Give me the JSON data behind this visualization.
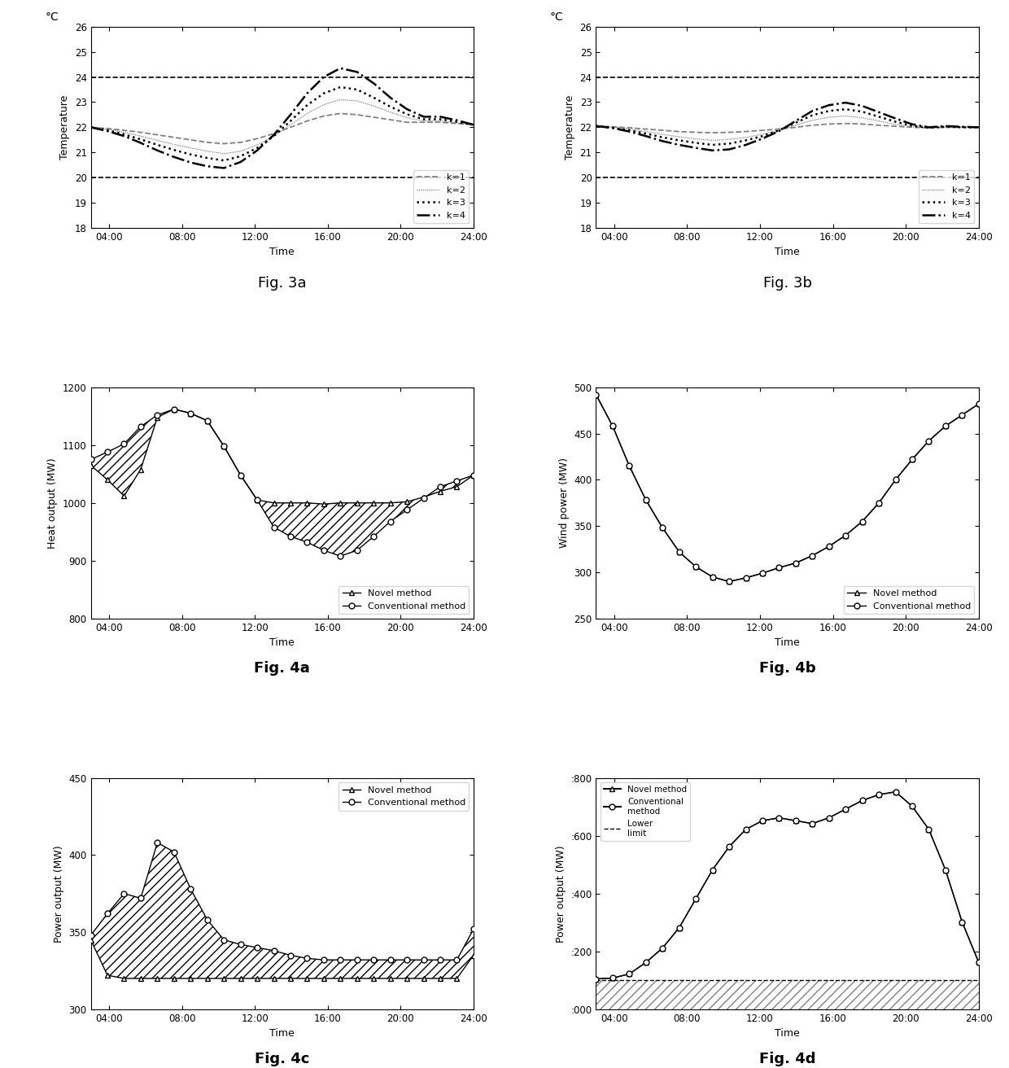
{
  "time_labels": [
    "04:00",
    "08:00",
    "12:00",
    "16:00",
    "20:00",
    "24:00"
  ],
  "time_ticks": [
    4,
    8,
    12,
    16,
    20,
    24
  ],
  "fig3a": {
    "ylim": [
      18,
      26
    ],
    "yticks": [
      18,
      19,
      20,
      21,
      22,
      23,
      24,
      25,
      26
    ],
    "k1": [
      22.0,
      21.95,
      21.88,
      21.8,
      21.7,
      21.6,
      21.5,
      21.4,
      21.35,
      21.4,
      21.55,
      21.75,
      22.0,
      22.25,
      22.45,
      22.55,
      22.5,
      22.4,
      22.3,
      22.2,
      22.2,
      22.2,
      22.15,
      22.1
    ],
    "k2": [
      22.0,
      21.92,
      21.8,
      21.65,
      21.48,
      21.32,
      21.18,
      21.05,
      20.95,
      21.05,
      21.3,
      21.65,
      22.1,
      22.55,
      22.9,
      23.1,
      23.05,
      22.85,
      22.6,
      22.38,
      22.25,
      22.25,
      22.18,
      22.1
    ],
    "k3": [
      22.0,
      21.88,
      21.72,
      21.52,
      21.3,
      21.1,
      20.92,
      20.78,
      20.68,
      20.85,
      21.18,
      21.65,
      22.25,
      22.88,
      23.35,
      23.6,
      23.5,
      23.18,
      22.82,
      22.52,
      22.32,
      22.32,
      22.22,
      22.1
    ],
    "k4": [
      22.0,
      21.85,
      21.65,
      21.38,
      21.08,
      20.82,
      20.6,
      20.45,
      20.38,
      20.62,
      21.08,
      21.7,
      22.5,
      23.35,
      24.0,
      24.35,
      24.2,
      23.75,
      23.18,
      22.72,
      22.42,
      22.42,
      22.28,
      22.1
    ]
  },
  "fig3b": {
    "ylim": [
      18,
      26
    ],
    "yticks": [
      18,
      19,
      20,
      21,
      22,
      23,
      24,
      25,
      26
    ],
    "k1": [
      22.05,
      22.02,
      21.98,
      21.93,
      21.88,
      21.83,
      21.8,
      21.78,
      21.8,
      21.83,
      21.88,
      21.93,
      22.0,
      22.08,
      22.13,
      22.15,
      22.13,
      22.08,
      22.04,
      22.0,
      21.98,
      22.0,
      22.0,
      22.0
    ],
    "k2": [
      22.05,
      22.0,
      21.93,
      21.83,
      21.72,
      21.62,
      21.54,
      21.48,
      21.52,
      21.6,
      21.72,
      21.88,
      22.08,
      22.28,
      22.4,
      22.45,
      22.38,
      22.25,
      22.12,
      22.02,
      21.98,
      22.0,
      22.0,
      22.0
    ],
    "k3": [
      22.05,
      21.98,
      21.88,
      21.75,
      21.6,
      21.48,
      21.38,
      21.3,
      21.35,
      21.48,
      21.65,
      21.88,
      22.18,
      22.48,
      22.65,
      22.72,
      22.62,
      22.42,
      22.22,
      22.06,
      21.98,
      22.02,
      22.0,
      22.0
    ],
    "k4": [
      22.05,
      21.97,
      21.83,
      21.65,
      21.45,
      21.3,
      21.18,
      21.08,
      21.12,
      21.3,
      21.55,
      21.85,
      22.25,
      22.65,
      22.88,
      22.98,
      22.85,
      22.6,
      22.35,
      22.12,
      22.0,
      22.05,
      22.02,
      22.0
    ]
  },
  "fig4a": {
    "ylim": [
      800,
      1200
    ],
    "yticks": [
      800,
      900,
      1000,
      1100,
      1200
    ],
    "novel": [
      1065,
      1040,
      1012,
      1058,
      1148,
      1162,
      1155,
      1142,
      1098,
      1048,
      1005,
      1000,
      1000,
      1000,
      998,
      1000,
      1000,
      1000,
      1000,
      1002,
      1010,
      1020,
      1028,
      1048
    ],
    "conventional": [
      1075,
      1088,
      1102,
      1132,
      1152,
      1162,
      1155,
      1142,
      1098,
      1048,
      1005,
      958,
      942,
      932,
      918,
      908,
      918,
      942,
      968,
      988,
      1008,
      1028,
      1038,
      1048
    ]
  },
  "fig4b": {
    "ylim": [
      250,
      500
    ],
    "yticks": [
      250,
      300,
      350,
      400,
      450,
      500
    ],
    "novel": [
      492,
      458,
      415,
      378,
      348,
      322,
      306,
      295,
      290,
      294,
      299,
      305,
      310,
      318,
      328,
      340,
      355,
      375,
      400,
      422,
      442,
      458,
      470,
      482
    ],
    "conventional": [
      492,
      458,
      415,
      378,
      348,
      322,
      306,
      295,
      290,
      294,
      299,
      305,
      310,
      318,
      328,
      340,
      355,
      375,
      400,
      422,
      442,
      458,
      470,
      482
    ]
  },
  "fig4c": {
    "ylim": [
      300,
      450
    ],
    "yticks": [
      300,
      350,
      400,
      450
    ],
    "novel": [
      345,
      322,
      320,
      320,
      320,
      320,
      320,
      320,
      320,
      320,
      320,
      320,
      320,
      320,
      320,
      320,
      320,
      320,
      320,
      320,
      320,
      320,
      320,
      335
    ],
    "conventional": [
      348,
      362,
      375,
      372,
      408,
      402,
      378,
      358,
      345,
      342,
      340,
      338,
      335,
      333,
      332,
      332,
      332,
      332,
      332,
      332,
      332,
      332,
      332,
      352
    ]
  },
  "fig4d": {
    "ylim": [
      0,
      800
    ],
    "lower_limit": 100,
    "novel": [
      105,
      108,
      122,
      162,
      212,
      282,
      382,
      482,
      562,
      622,
      652,
      662,
      652,
      642,
      662,
      692,
      722,
      742,
      752,
      702,
      622,
      482,
      302,
      162
    ],
    "conventional": [
      105,
      108,
      122,
      162,
      212,
      282,
      382,
      482,
      562,
      622,
      652,
      662,
      652,
      642,
      662,
      692,
      722,
      742,
      752,
      702,
      622,
      482,
      302,
      162
    ]
  }
}
